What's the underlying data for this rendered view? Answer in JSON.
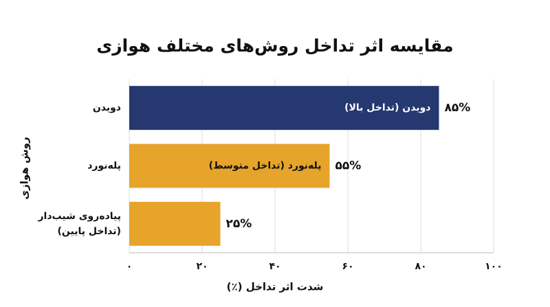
{
  "chart_data": {
    "type": "bar",
    "orientation": "horizontal",
    "title": "مقایسه اثر تداخل روش‌های مختلف هوازی",
    "x_label": "شدت اثر تداخل (٪)",
    "y_label": "روش هوازی",
    "categories": [
      [
        "دویدن"
      ],
      [
        "پله‌نورد"
      ],
      [
        "پیاده‌روی شیب‌دار",
        "(تداخل پایین)"
      ]
    ],
    "values": [
      85,
      55,
      25
    ],
    "value_labels": [
      "۸۵%",
      "۵۵%",
      "۲۵%"
    ],
    "bar_labels": [
      "دویدن (تداخل بالا)",
      "پله‌نورد (تداخل متوسط)",
      null
    ],
    "colors": [
      "#253870",
      "#e6a42b",
      "#e6a42b"
    ],
    "xlim": [
      0,
      100
    ],
    "xticks": [
      {
        "value": 0,
        "label": "۰"
      },
      {
        "value": 20,
        "label": "۲۰"
      },
      {
        "value": 40,
        "label": "۴۰"
      },
      {
        "value": 60,
        "label": "۶۰"
      },
      {
        "value": 80,
        "label": "۸۰"
      },
      {
        "value": 100,
        "label": "۱۰۰"
      }
    ],
    "grid": true
  }
}
